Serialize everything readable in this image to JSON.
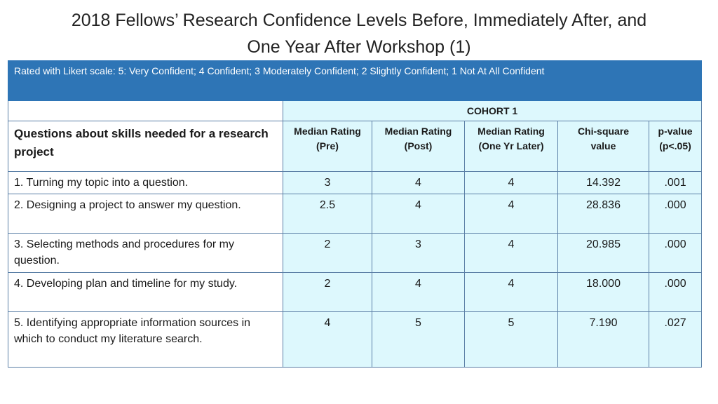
{
  "title": {
    "line1": "2018 Fellows’ Research Confidence Levels Before, Immediately After, and",
    "line2": "One Year After  Workshop (1)"
  },
  "banner": "Rated with Likert scale: 5: Very Confident; 4 Confident; 3 Moderately Confident; 2 Slightly Confident; 1 Not At All Confident",
  "cohort_label": "COHORT 1",
  "question_header": "Questions about skills needed for a research project",
  "columns": [
    {
      "line1": "Median Rating",
      "line2": "(Pre)"
    },
    {
      "line1": "Median Rating",
      "line2": "(Post)"
    },
    {
      "line1": "Median Rating",
      "line2": "(One Yr Later)"
    },
    {
      "line1": "Chi-square",
      "line2": "value"
    },
    {
      "line1": "p-value",
      "line2": "(p<.05)"
    }
  ],
  "rows": [
    {
      "question": "1. Turning my topic into a question.",
      "pre": "3",
      "post": "4",
      "one_yr": "4",
      "chi": "14.392",
      "p": ".001"
    },
    {
      "question": "2. Designing a project to answer my question.",
      "pre": "2.5",
      "post": "4",
      "one_yr": "4",
      "chi": "28.836",
      "p": ".000"
    },
    {
      "question": "3. Selecting methods and procedures for my question.",
      "pre": "2",
      "post": "3",
      "one_yr": "4",
      "chi": "20.985",
      "p": ".000"
    },
    {
      "question": "4. Developing plan and timeline for my study.",
      "pre": "2",
      "post": "4",
      "one_yr": "4",
      "chi": "18.000",
      "p": ".000"
    },
    {
      "question": "5. Identifying appropriate information sources in which to conduct my literature search.",
      "pre": "4",
      "post": "5",
      "one_yr": "5",
      "chi": "7.190",
      "p": ".027"
    }
  ]
}
